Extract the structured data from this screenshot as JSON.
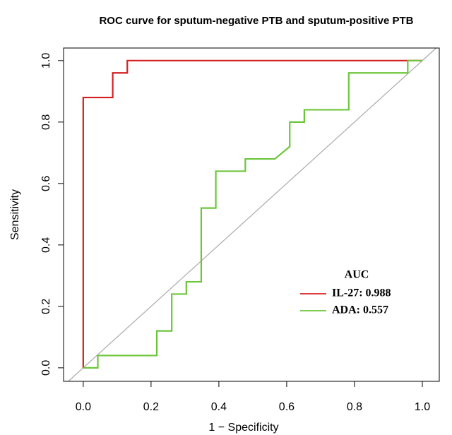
{
  "chart_data": {
    "type": "line",
    "title": "ROC curve for sputum-negative PTB and sputum-positive PTB",
    "xlabel": "1 − Specificity",
    "ylabel": "Sensitivity",
    "legend_title": "AUC",
    "xlim": [
      -0.058,
      1.05
    ],
    "ylim": [
      -0.044,
      1.041
    ],
    "xticks": [
      {
        "value": 0,
        "label": "0.0"
      },
      0.2,
      0.4,
      0.6,
      0.8,
      {
        "value": 1,
        "label": "1.0"
      }
    ],
    "yticks": [
      {
        "value": 0,
        "label": "0.0"
      },
      0.2,
      0.4,
      0.6,
      0.8,
      {
        "value": 1,
        "label": "1.0"
      }
    ],
    "reference_line_color": "#aaaaaa",
    "series": [
      {
        "name": "IL-27: 0.988",
        "color": "#d42020",
        "x": [
          0,
          0,
          0.087,
          0.087,
          0.13,
          0.13,
          1
        ],
        "values": [
          0,
          0.88,
          0.88,
          0.96,
          0.96,
          1,
          1
        ]
      },
      {
        "name": "ADA: 0.557",
        "color": "#6cc63a",
        "x": [
          0,
          0.043,
          0.043,
          0.217,
          0.217,
          0.261,
          0.261,
          0.304,
          0.304,
          0.348,
          0.348,
          0.391,
          0.391,
          0.478,
          0.478,
          0.565,
          0.609,
          0.609,
          0.652,
          0.652,
          0.783,
          0.783,
          0.957,
          0.957,
          1
        ],
        "values": [
          0,
          0,
          0.04,
          0.04,
          0.12,
          0.12,
          0.24,
          0.24,
          0.28,
          0.28,
          0.52,
          0.52,
          0.64,
          0.64,
          0.68,
          0.68,
          0.72,
          0.8,
          0.8,
          0.84,
          0.84,
          0.96,
          0.96,
          1,
          1
        ]
      }
    ]
  }
}
